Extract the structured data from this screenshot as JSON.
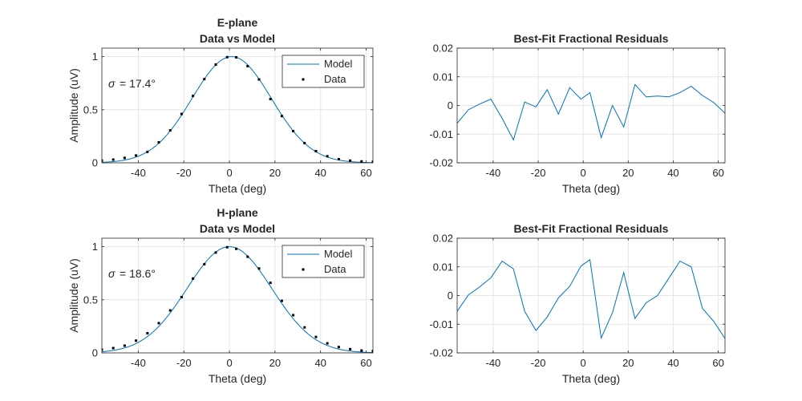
{
  "colors": {
    "model_line": "#0072BD",
    "data_points": "#000000",
    "residual_line": "#0072BD",
    "grid": "#e6e6e6",
    "axis": "#262626"
  },
  "chart_data": [
    {
      "id": "eplane-fit",
      "type": "line",
      "title": [
        "E-plane",
        "Data vs Model"
      ],
      "xlabel": "Theta (deg)",
      "ylabel": "Amplitude (uV)",
      "xlim": [
        -56,
        63
      ],
      "ylim": [
        0,
        1.08
      ],
      "xticks": [
        -40,
        -20,
        0,
        20,
        40,
        60
      ],
      "yticks": [
        0,
        0.5,
        1
      ],
      "ytick_labels": [
        "0",
        "0.5",
        "1"
      ],
      "grid": true,
      "legend": {
        "position": "top-right",
        "entries": [
          "Model",
          "Data"
        ]
      },
      "annotation": {
        "symbol": "σ",
        "text": "= 17.4°"
      },
      "series": [
        {
          "name": "Model",
          "kind": "line",
          "gaussian": {
            "amplitude": 1.0,
            "center": 1.0,
            "sigma": 17.4
          }
        },
        {
          "name": "Data",
          "kind": "markers",
          "x": [
            -56,
            -51,
            -46,
            -41,
            -36,
            -31,
            -26,
            -21,
            -16,
            -11,
            -6,
            -1,
            3,
            8,
            13,
            18,
            23,
            28,
            33,
            38,
            43,
            48,
            53,
            58,
            63
          ],
          "y": [
            0.021,
            0.03,
            0.046,
            0.069,
            0.103,
            0.193,
            0.305,
            0.46,
            0.63,
            0.788,
            0.925,
            0.995,
            0.993,
            0.91,
            0.785,
            0.6,
            0.44,
            0.298,
            0.186,
            0.11,
            0.062,
            0.034,
            0.02,
            0.013,
            0.01
          ]
        }
      ]
    },
    {
      "id": "eplane-residuals",
      "type": "line",
      "title": [
        "Best-Fit Fractional Residuals"
      ],
      "xlabel": "Theta (deg)",
      "ylabel": "",
      "xlim": [
        -56,
        63
      ],
      "ylim": [
        -0.02,
        0.02
      ],
      "xticks": [
        -40,
        -20,
        0,
        20,
        40,
        60
      ],
      "yticks": [
        -0.02,
        -0.01,
        0,
        0.01,
        0.02
      ],
      "ytick_labels": [
        "-0.02",
        "-0.01",
        "0",
        "0.01",
        "0.02"
      ],
      "grid": true,
      "series": [
        {
          "kind": "line",
          "x": [
            -56,
            -51,
            -46,
            -41,
            -36,
            -31,
            -26,
            -21,
            -16,
            -11,
            -6,
            -1,
            3,
            8,
            13,
            18,
            23,
            28,
            33,
            38,
            43,
            48,
            53,
            58,
            63
          ],
          "y": [
            -0.0062,
            -0.0015,
            0.0005,
            0.0022,
            -0.0045,
            -0.012,
            0.0012,
            -0.0005,
            0.0055,
            -0.003,
            0.0062,
            0.0022,
            0.0045,
            -0.0112,
            0.0,
            -0.0075,
            0.0073,
            0.003,
            0.0033,
            0.003,
            0.0045,
            0.0067,
            0.0035,
            0.001,
            -0.0027
          ]
        }
      ]
    },
    {
      "id": "hplane-fit",
      "type": "line",
      "title": [
        "H-plane",
        "Data vs Model"
      ],
      "xlabel": "Theta (deg)",
      "ylabel": "Amplitude (uV)",
      "xlim": [
        -56,
        63
      ],
      "ylim": [
        0,
        1.08
      ],
      "xticks": [
        -40,
        -20,
        0,
        20,
        40,
        60
      ],
      "yticks": [
        0,
        0.5,
        1
      ],
      "ytick_labels": [
        "0",
        "0.5",
        "1"
      ],
      "grid": true,
      "legend": {
        "position": "top-right",
        "entries": [
          "Model",
          "Data"
        ]
      },
      "annotation": {
        "symbol": "σ",
        "text": "= 18.6°"
      },
      "series": [
        {
          "name": "Model",
          "kind": "line",
          "gaussian": {
            "amplitude": 1.0,
            "center": 0.0,
            "sigma": 18.6
          }
        },
        {
          "name": "Data",
          "kind": "markers",
          "x": [
            -56,
            -51,
            -46,
            -41,
            -36,
            -31,
            -26,
            -21,
            -16,
            -11,
            -6,
            -1,
            3,
            8,
            13,
            18,
            23,
            28,
            33,
            38,
            43,
            48,
            53,
            58,
            63
          ],
          "y": [
            0.03,
            0.045,
            0.068,
            0.115,
            0.185,
            0.28,
            0.4,
            0.525,
            0.7,
            0.835,
            0.945,
            0.995,
            0.98,
            0.905,
            0.795,
            0.66,
            0.49,
            0.355,
            0.24,
            0.15,
            0.09,
            0.055,
            0.035,
            0.022,
            0.018
          ]
        }
      ]
    },
    {
      "id": "hplane-residuals",
      "type": "line",
      "title": [
        "Best-Fit Fractional Residuals"
      ],
      "xlabel": "Theta (deg)",
      "ylabel": "",
      "xlim": [
        -56,
        63
      ],
      "ylim": [
        -0.02,
        0.02
      ],
      "xticks": [
        -40,
        -20,
        0,
        20,
        40,
        60
      ],
      "yticks": [
        -0.02,
        -0.01,
        0,
        0.01,
        0.02
      ],
      "ytick_labels": [
        "-0.02",
        "-0.01",
        "0",
        "0.01",
        "0.02"
      ],
      "grid": true,
      "series": [
        {
          "kind": "line",
          "x": [
            -56,
            -51,
            -46,
            -41,
            -36,
            -31,
            -26,
            -21,
            -16,
            -11,
            -6,
            -1,
            3,
            8,
            13,
            18,
            23,
            28,
            33,
            38,
            43,
            48,
            53,
            58,
            63
          ],
          "y": [
            -0.0055,
            0.0002,
            0.003,
            0.0062,
            0.012,
            0.0093,
            -0.0055,
            -0.0122,
            -0.0075,
            -0.0008,
            0.0032,
            0.0103,
            0.0125,
            -0.0148,
            -0.006,
            0.008,
            -0.008,
            -0.0025,
            0.0,
            0.006,
            0.012,
            0.01,
            -0.0045,
            -0.009,
            -0.015
          ]
        }
      ]
    }
  ]
}
